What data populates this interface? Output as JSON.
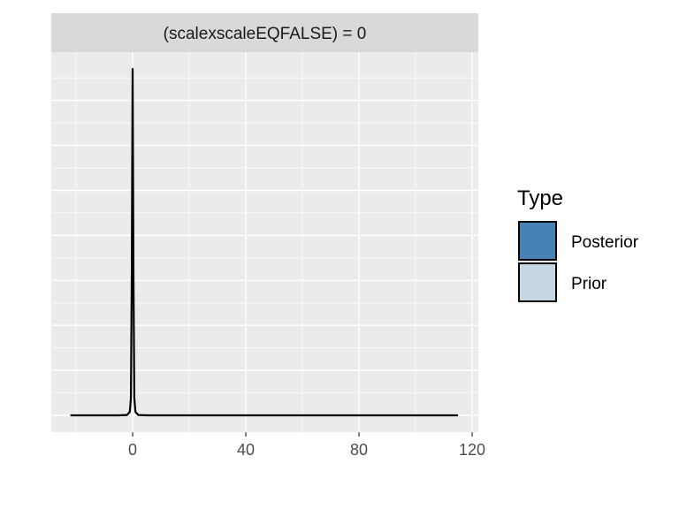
{
  "chart_data": {
    "type": "area",
    "facet_label": "(scalexscaleEQFALSE) = 0",
    "xlabel": "",
    "ylabel": "",
    "xlim": [
      -25,
      120
    ],
    "ylim": [
      0,
      1
    ],
    "x_ticks": [
      0,
      40,
      80,
      120
    ],
    "x_tick_labels": [
      "0",
      "40",
      "80",
      "120"
    ],
    "grid": true,
    "legend": {
      "title": "Type",
      "position": "right",
      "entries": [
        {
          "label": "Posterior",
          "color": "#4682B4"
        },
        {
          "label": "Prior",
          "color": "#C6D7E4"
        }
      ]
    },
    "series": [
      {
        "name": "Posterior",
        "color": "#4682B4",
        "x": [
          -22,
          -5,
          -2,
          -1,
          -0.6,
          -0.3,
          0,
          0.3,
          0.6,
          1,
          2,
          5,
          115
        ],
        "values": [
          0,
          0,
          0.001,
          0.01,
          0.05,
          0.4,
          1.0,
          0.4,
          0.05,
          0.01,
          0.001,
          0,
          0
        ]
      }
    ]
  }
}
